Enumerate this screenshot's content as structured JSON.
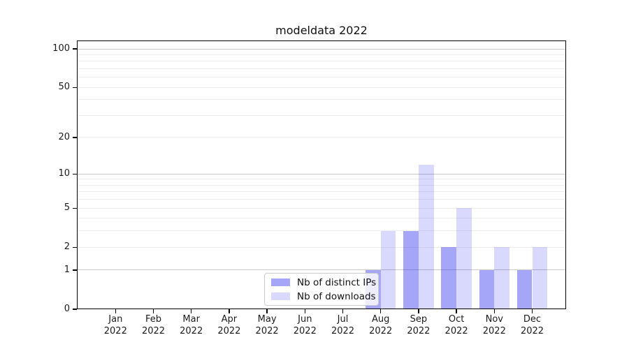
{
  "chart_data": {
    "type": "bar",
    "title": "modeldata 2022",
    "categories": [
      "Jan 2022",
      "Feb 2022",
      "Mar 2022",
      "Apr 2022",
      "May 2022",
      "Jun 2022",
      "Jul 2022",
      "Aug 2022",
      "Sep 2022",
      "Oct 2022",
      "Nov 2022",
      "Dec 2022"
    ],
    "series": [
      {
        "name": "Nb of distinct IPs",
        "color": "#1414f0",
        "alpha": 0.38,
        "values": [
          0,
          0,
          0,
          0,
          0,
          0,
          0,
          1,
          3,
          2,
          1,
          1
        ]
      },
      {
        "name": "Nb of downloads",
        "color": "#1414f0",
        "alpha": 0.16,
        "values": [
          0,
          0,
          0,
          0,
          0,
          0,
          0,
          3,
          12,
          5,
          2,
          2
        ]
      }
    ],
    "xlabel": "",
    "ylabel": "",
    "yscale": "log1p",
    "ylim": [
      0,
      117
    ],
    "yticks": [
      0,
      1,
      2,
      5,
      10,
      20,
      50,
      100
    ],
    "major_gridlines": [
      1,
      10,
      100
    ],
    "minor_gridlines": [
      2,
      3,
      4,
      5,
      6,
      7,
      8,
      9,
      20,
      30,
      40,
      50,
      60,
      70,
      80,
      90
    ],
    "grid": "horizontal only",
    "legend_position": "inside bottom-center"
  },
  "colors": {
    "bar_base": "#1414f0",
    "grid_major": "#c8c8c8",
    "grid_minor": "#ededed",
    "axis": "#000000",
    "legend_border": "#cccccc",
    "background": "#ffffff"
  }
}
